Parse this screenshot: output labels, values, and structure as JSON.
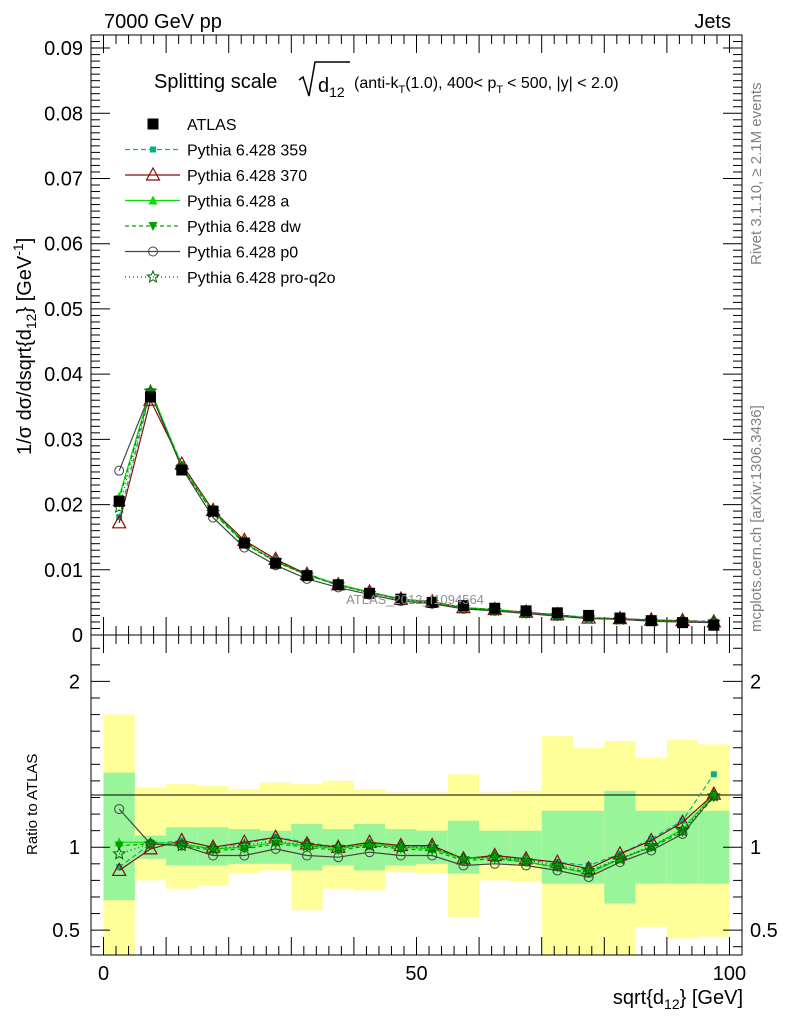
{
  "header": {
    "left": "7000 GeV pp",
    "right": "Jets"
  },
  "side_text": {
    "rivet": "Rivet 3.1.10, ≥ 2.1M events",
    "mcplots": "mcplots.cern.ch [arXiv:1306.3436]"
  },
  "watermark": "ATLAS_2012_I1094564",
  "title": {
    "main": "Splitting scale",
    "sqrt_arg": "d",
    "sqrt_sub": "12",
    "p1": "(anti-k",
    "p1_sub": "T",
    "p2": "(1.0), 400< p",
    "p2_sub": "T",
    "p3": "< 500, |y| < 2.0)"
  },
  "ylabel_top": {
    "a": "1/σ dσ/dsqrt{d",
    "a_sub": "12",
    "b": "} [GeV",
    "b_sup": "-1",
    "c": "]"
  },
  "ylabel_bottom": "Ratio to ATLAS",
  "xlabel": {
    "a": "sqrt{d",
    "a_sub": "12",
    "b": "} [GeV]"
  },
  "colors": {
    "atlas": "#000000",
    "p359": "#00b386",
    "p370": "#8b0a0a",
    "pa": "#00e000",
    "pdw": "#00a000",
    "pp0": "#444444",
    "pq2o": "#006400",
    "band_inner": "#99f599",
    "band_outer": "#ffff99"
  },
  "chart_data": [
    {
      "type": "scatter",
      "xlim": [
        -2,
        102
      ],
      "ylim": [
        0,
        0.092
      ],
      "yticks": [
        0,
        0.01,
        0.02,
        0.03,
        0.04,
        0.05,
        0.06,
        0.07,
        0.08,
        0.09
      ],
      "ytick_labels": [
        "0",
        "0.01",
        "0.02",
        "0.03",
        "0.04",
        "0.05",
        "0.06",
        "0.07",
        "0.08",
        "0.09"
      ],
      "x": [
        2.5,
        7.5,
        12.5,
        17.5,
        22.5,
        27.5,
        32.5,
        37.5,
        42.5,
        47.5,
        52.5,
        57.5,
        62.5,
        67.5,
        72.5,
        77.5,
        82.5,
        87.5,
        92.5,
        97.5
      ],
      "series": [
        {
          "name": "ATLAS",
          "key": "atlas",
          "marker": "square",
          "values": [
            0.0205,
            0.0365,
            0.0253,
            0.019,
            0.0141,
            0.011,
            0.0091,
            0.0077,
            0.0064,
            0.0055,
            0.005,
            0.0045,
            0.0041,
            0.0037,
            0.0034,
            0.003,
            0.0026,
            0.0022,
            0.0019,
            0.0015
          ]
        },
        {
          "name": "Pythia 6.428 359",
          "key": "p359",
          "marker": "small-square",
          "dash": "5,3",
          "values": [
            0.0181,
            0.0372,
            0.0262,
            0.019,
            0.0142,
            0.0113,
            0.0094,
            0.0077,
            0.0066,
            0.0055,
            0.005,
            0.0042,
            0.0039,
            0.0034,
            0.0031,
            0.0027,
            0.0025,
            0.0023,
            0.0022,
            0.0021
          ]
        },
        {
          "name": "Pythia 6.428 370",
          "key": "p370",
          "marker": "open-triangle",
          "dash": "",
          "values": [
            0.0172,
            0.036,
            0.0262,
            0.0191,
            0.0145,
            0.0116,
            0.0093,
            0.0077,
            0.0066,
            0.0055,
            0.0051,
            0.0042,
            0.0039,
            0.0035,
            0.0031,
            0.0026,
            0.0025,
            0.0023,
            0.0022,
            0.002
          ]
        },
        {
          "name": "Pythia 6.428 a",
          "key": "pa",
          "marker": "triangle",
          "dash": "",
          "values": [
            0.0212,
            0.0376,
            0.0259,
            0.0189,
            0.0141,
            0.0113,
            0.0092,
            0.0078,
            0.0065,
            0.0055,
            0.005,
            0.0042,
            0.0039,
            0.0034,
            0.003,
            0.0026,
            0.0024,
            0.0022,
            0.0021,
            0.002
          ]
        },
        {
          "name": "Pythia 6.428 dw",
          "key": "pdw",
          "marker": "down-triangle",
          "dash": "4,3",
          "values": [
            0.0208,
            0.0372,
            0.0257,
            0.0187,
            0.014,
            0.0112,
            0.0092,
            0.0076,
            0.0065,
            0.0054,
            0.0049,
            0.0042,
            0.0038,
            0.0034,
            0.003,
            0.0026,
            0.0024,
            0.0022,
            0.002,
            0.0019
          ]
        },
        {
          "name": "Pythia 6.428 p0",
          "key": "pp0",
          "marker": "open-circle",
          "dash": "",
          "values": [
            0.0252,
            0.0372,
            0.0256,
            0.018,
            0.0134,
            0.0107,
            0.0086,
            0.0073,
            0.0062,
            0.0052,
            0.0048,
            0.004,
            0.0037,
            0.0033,
            0.0029,
            0.0025,
            0.0024,
            0.0021,
            0.002,
            0.0019
          ]
        },
        {
          "name": "Pythia 6.428 pro-q2o",
          "key": "pq2o",
          "marker": "open-star",
          "dash": "1,3",
          "values": [
            0.0196,
            0.0374,
            0.0256,
            0.0188,
            0.0142,
            0.0114,
            0.0092,
            0.0077,
            0.0064,
            0.0054,
            0.005,
            0.0042,
            0.0038,
            0.0034,
            0.003,
            0.0026,
            0.0024,
            0.0022,
            0.0021,
            0.002
          ]
        }
      ]
    },
    {
      "type": "scatter",
      "xlim": [
        -2,
        102
      ],
      "ylim": [
        0.35,
        2.28
      ],
      "yticks": [
        0.5,
        1,
        2
      ],
      "ytick_labels": [
        "0.5",
        "1",
        "2"
      ],
      "xticks": [
        0,
        50,
        100
      ],
      "xtick_labels": [
        "0",
        "50",
        "100"
      ],
      "bin_edges": [
        0,
        5,
        10,
        15,
        20,
        25,
        30,
        35,
        40,
        45,
        50,
        55,
        60,
        65,
        70,
        75,
        80,
        85,
        90,
        95,
        100
      ],
      "band_inner": [
        [
          0.68,
          1.45
        ],
        [
          0.93,
          1.07
        ],
        [
          0.89,
          1.12
        ],
        [
          0.89,
          1.12
        ],
        [
          0.9,
          1.11
        ],
        [
          0.9,
          1.1
        ],
        [
          0.86,
          1.14
        ],
        [
          0.89,
          1.11
        ],
        [
          0.86,
          1.14
        ],
        [
          0.89,
          1.11
        ],
        [
          0.9,
          1.1
        ],
        [
          0.84,
          1.16
        ],
        [
          0.9,
          1.1
        ],
        [
          0.9,
          1.1
        ],
        [
          0.78,
          1.22
        ],
        [
          0.78,
          1.22
        ],
        [
          0.66,
          1.34
        ],
        [
          0.78,
          1.22
        ],
        [
          0.78,
          1.22
        ],
        [
          0.78,
          1.22
        ]
      ],
      "band_outer": [
        [
          0.35,
          1.8
        ],
        [
          0.8,
          1.36
        ],
        [
          0.75,
          1.38
        ],
        [
          0.77,
          1.37
        ],
        [
          0.84,
          1.35
        ],
        [
          0.86,
          1.39
        ],
        [
          0.62,
          1.38
        ],
        [
          0.75,
          1.4
        ],
        [
          0.74,
          1.35
        ],
        [
          0.85,
          1.33
        ],
        [
          0.84,
          1.33
        ],
        [
          0.58,
          1.44
        ],
        [
          0.8,
          1.33
        ],
        [
          0.79,
          1.34
        ],
        [
          0.35,
          1.67
        ],
        [
          0.35,
          1.6
        ],
        [
          0.35,
          1.64
        ],
        [
          0.52,
          1.54
        ],
        [
          0.45,
          1.65
        ],
        [
          0.46,
          1.62
        ]
      ],
      "x": [
        2.5,
        7.5,
        12.5,
        17.5,
        22.5,
        27.5,
        32.5,
        37.5,
        42.5,
        47.5,
        52.5,
        57.5,
        62.5,
        67.5,
        72.5,
        77.5,
        82.5,
        87.5,
        92.5,
        97.5
      ],
      "series": [
        {
          "name": "Pythia 6.428 359",
          "key": "p359",
          "marker": "small-square",
          "dash": "5,3",
          "values": [
            0.88,
            1.02,
            1.04,
            1.0,
            1.02,
            1.06,
            1.03,
            1.0,
            1.03,
            1.01,
            1.0,
            0.93,
            0.95,
            0.92,
            0.91,
            0.89,
            0.96,
            1.05,
            1.16,
            1.44
          ]
        },
        {
          "name": "Pythia 6.428 370",
          "key": "p370",
          "marker": "open-triangle",
          "dash": "",
          "values": [
            0.86,
            0.99,
            1.04,
            1.0,
            1.03,
            1.06,
            1.02,
            1.0,
            1.03,
            1.01,
            1.01,
            0.93,
            0.95,
            0.93,
            0.91,
            0.87,
            0.96,
            1.04,
            1.15,
            1.32
          ]
        },
        {
          "name": "Pythia 6.428 a",
          "key": "pa",
          "marker": "triangle",
          "dash": "",
          "values": [
            1.03,
            1.03,
            1.02,
            0.99,
            1.0,
            1.03,
            1.01,
            0.99,
            1.02,
            1.0,
            0.99,
            0.93,
            0.94,
            0.91,
            0.88,
            0.84,
            0.93,
            1.0,
            1.11,
            1.32
          ]
        },
        {
          "name": "Pythia 6.428 dw",
          "key": "pdw",
          "marker": "down-triangle",
          "dash": "4,3",
          "values": [
            1.01,
            1.02,
            1.01,
            0.98,
            0.99,
            1.02,
            1.0,
            0.98,
            1.01,
            0.99,
            0.98,
            0.92,
            0.93,
            0.91,
            0.88,
            0.85,
            0.93,
            1.0,
            1.09,
            1.3
          ]
        },
        {
          "name": "Pythia 6.428 p0",
          "key": "pp0",
          "marker": "open-circle",
          "dash": "",
          "values": [
            1.23,
            1.02,
            1.01,
            0.95,
            0.95,
            0.99,
            0.95,
            0.94,
            0.97,
            0.95,
            0.95,
            0.89,
            0.9,
            0.89,
            0.86,
            0.82,
            0.91,
            0.98,
            1.08,
            1.31
          ]
        },
        {
          "name": "Pythia 6.428 pro-q2o",
          "key": "pq2o",
          "marker": "open-star",
          "dash": "1,3",
          "values": [
            0.96,
            1.02,
            1.01,
            0.99,
            1.01,
            1.04,
            1.01,
            1.0,
            1.01,
            1.0,
            1.0,
            0.93,
            0.94,
            0.92,
            0.89,
            0.86,
            0.93,
            1.01,
            1.1,
            1.31
          ]
        }
      ]
    }
  ]
}
